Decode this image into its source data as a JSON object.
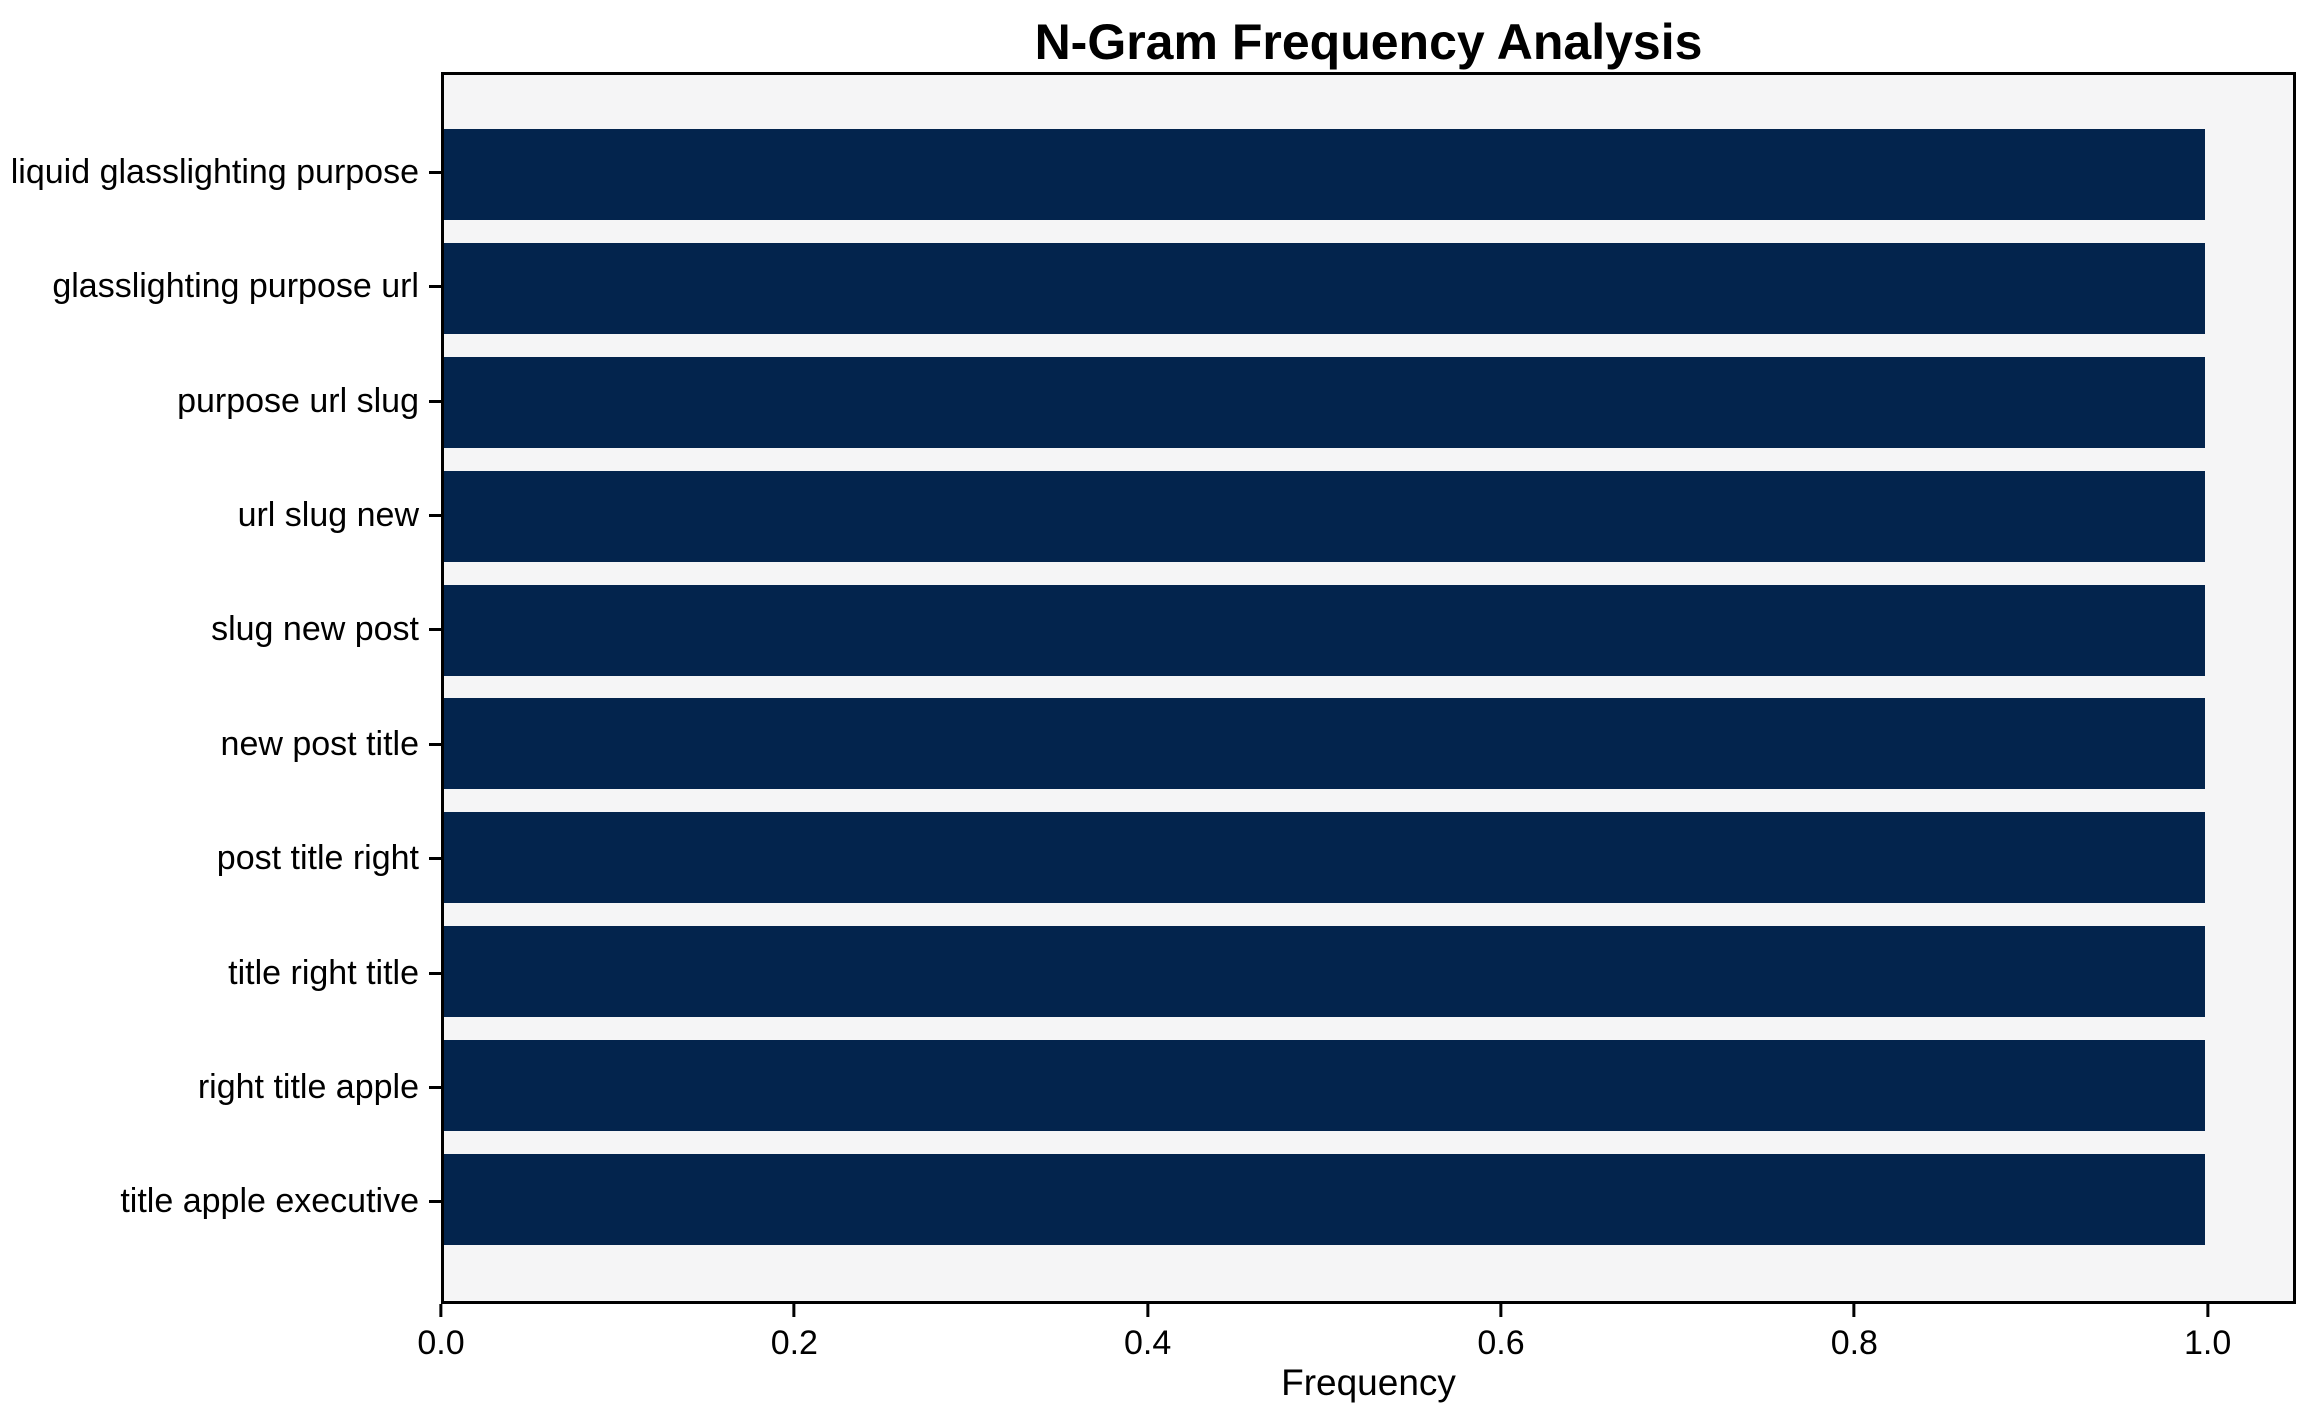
{
  "chart_data": {
    "type": "bar",
    "orientation": "horizontal",
    "title": "N-Gram Frequency Analysis",
    "xlabel": "Frequency",
    "ylabel": "",
    "categories": [
      "liquid glasslighting purpose",
      "glasslighting purpose url",
      "purpose url slug",
      "url slug new",
      "slug new post",
      "new post title",
      "post title right",
      "title right title",
      "right title apple",
      "title apple executive"
    ],
    "values": [
      1.0,
      1.0,
      1.0,
      1.0,
      1.0,
      1.0,
      1.0,
      1.0,
      1.0,
      1.0
    ],
    "xlim": [
      0,
      1.05
    ],
    "xticks": [
      0.0,
      0.2,
      0.4,
      0.6,
      0.8,
      1.0
    ],
    "xtick_labels": [
      "0.0",
      "0.2",
      "0.4",
      "0.6",
      "0.8",
      "1.0"
    ],
    "grid": false,
    "legend": null,
    "colors": {
      "bar": "#03244D",
      "plot_background": "#f5f5f6",
      "figure_background": "#ffffff",
      "spine": "#000000",
      "text": "#000000"
    }
  }
}
